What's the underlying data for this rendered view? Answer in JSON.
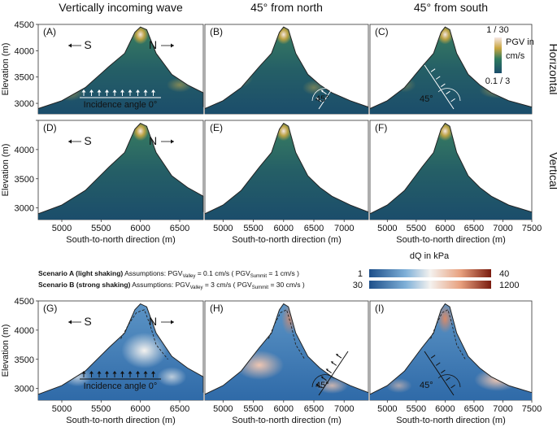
{
  "columns": [
    "Vertically incoming wave",
    "45° from north",
    "45° from south"
  ],
  "rows": [
    "Horizontal",
    "Vertical"
  ],
  "panel_letters": [
    "(A)",
    "(B)",
    "(C)",
    "(D)",
    "(E)",
    "(F)",
    "(G)",
    "(H)",
    "(I)"
  ],
  "direction_labels": {
    "south": "S",
    "north": "N"
  },
  "incidence_label": "Incidence angle 0°",
  "angle_label": "45°",
  "ylabel": "Elevation (m)",
  "xlabel": "South-to-north direction (m)",
  "y_ticks": [
    3000,
    3500,
    4000,
    4500
  ],
  "x_ticks_narrow": [
    5000,
    5500,
    6000,
    6500
  ],
  "x_ticks_mid": [
    5000,
    5500,
    6000,
    6500,
    7000
  ],
  "x_ticks_right": [
    5000,
    5500,
    6000,
    6500,
    7000,
    7500
  ],
  "pgv_legend": {
    "top": "1 / 30",
    "label1": "PGV in",
    "label2": "cm/s",
    "bottom": "0.1 / 3"
  },
  "dq_legend": {
    "title": "dQ  in kPa",
    "a_min": "1",
    "a_max": "40",
    "b_min": "30",
    "b_max": "1200"
  },
  "scenarios": {
    "a_name": "Scenario A (light shaking)",
    "b_name": "Scenario B (strong shaking)",
    "assumptions": "Assumptions:",
    "a_valley": "PGV",
    "valley_sub": "Valley",
    "a_valley_val": " = 0.1 cm/s",
    "b_valley_val": " = 3 cm/s",
    "summit_sub": "Summit",
    "a_summit_val": " = 1 cm/s )",
    "b_summit_val": " = 30 cm/s )",
    "open_paren": "( PGV"
  },
  "colors": {
    "pgv_low": "#1b4d6b",
    "pgv_mid": "#2f7a5e",
    "pgv_high": "#c9a640",
    "pgv_peak": "#f6e8e4",
    "dq_low": "#1d4f8a",
    "dq_mid": "#f4f2ef",
    "dq_high": "#7a1c0f"
  },
  "chart_data": {
    "type": "heatmap",
    "x_range": [
      4700,
      7500
    ],
    "y_range": [
      2800,
      4500
    ],
    "ridge_profile": [
      [
        4700,
        2900
      ],
      [
        5000,
        3050
      ],
      [
        5300,
        3300
      ],
      [
        5600,
        3700
      ],
      [
        5800,
        3950
      ],
      [
        5930,
        4350
      ],
      [
        6000,
        4450
      ],
      [
        6080,
        4400
      ],
      [
        6200,
        3950
      ],
      [
        6400,
        3550
      ],
      [
        6600,
        3350
      ],
      [
        6800,
        3200
      ],
      [
        7100,
        3050
      ],
      [
        7500,
        2930
      ]
    ]
  }
}
